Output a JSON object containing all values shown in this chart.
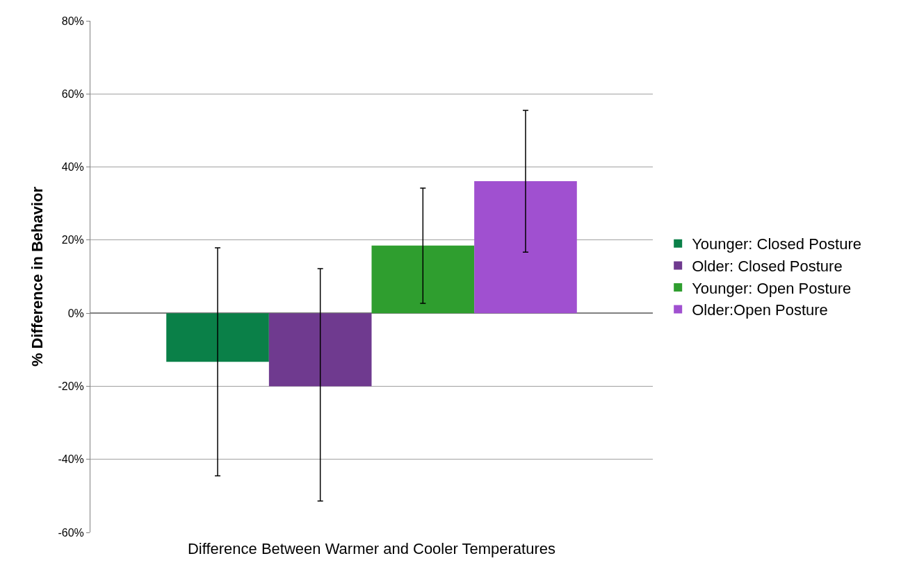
{
  "chart_data": {
    "type": "bar",
    "xlabel": "Difference Between Warmer and Cooler Temperatures",
    "ylabel": "% Difference in Behavior",
    "categories": [
      null
    ],
    "series": [
      {
        "name": "Younger: Closed Posture",
        "color": "#0a8048",
        "values": [
          -13.3
        ],
        "errors": [
          [
            -44.5,
            17.9
          ]
        ]
      },
      {
        "name": "Older: Closed Posture",
        "color": "#6f3a8f",
        "values": [
          -20
        ],
        "errors": [
          [
            -51.4,
            12.2
          ]
        ]
      },
      {
        "name": "Younger: Open Posture",
        "color": "#2f9e2f",
        "values": [
          18.5
        ],
        "errors": [
          [
            2.7,
            34.2
          ]
        ]
      },
      {
        "name": "Older:Open Posture",
        "color": "#a050d0",
        "values": [
          36.1
        ],
        "errors": [
          [
            16.7,
            55.5
          ]
        ]
      }
    ],
    "ylim": [
      -60,
      80
    ],
    "yticks": [
      {
        "value": -60,
        "label": "-60%"
      },
      {
        "value": -40,
        "label": "-40%"
      },
      {
        "value": -20,
        "label": "-20%"
      },
      {
        "value": 0,
        "label": "0%"
      },
      {
        "value": 20,
        "label": "20%"
      },
      {
        "value": 40,
        "label": "40%"
      },
      {
        "value": 60,
        "label": "60%"
      },
      {
        "value": 80,
        "label": "80%"
      }
    ],
    "grid": "y",
    "legend": "right"
  }
}
